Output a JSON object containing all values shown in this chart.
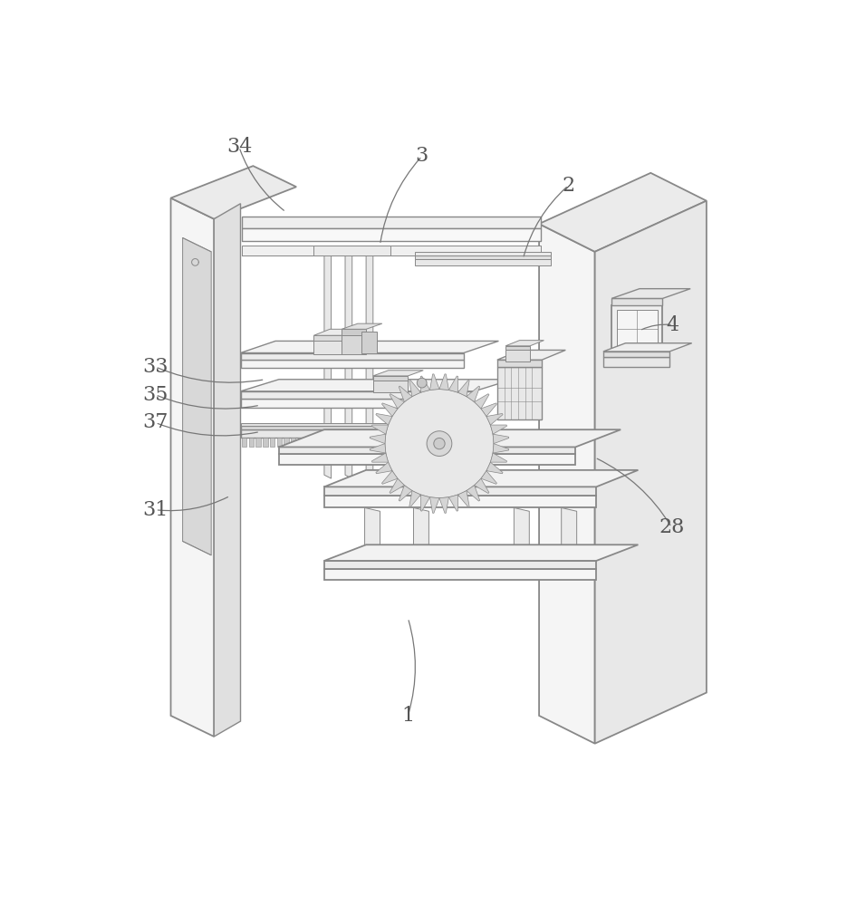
{
  "bg_color": "#ffffff",
  "line_color": "#aaaaaa",
  "line_color_med": "#888888",
  "line_color_dark": "#555555",
  "label_color": "#555555",
  "label_fontsize": 16,
  "leader_color": "#777777",
  "lw_main": 1.3,
  "lw_thin": 0.7,
  "lw_med": 1.0,
  "labels": [
    [
      "1",
      430,
      870,
      430,
      730
    ],
    [
      "2",
      660,
      110,
      595,
      215
    ],
    [
      "3",
      450,
      68,
      390,
      195
    ],
    [
      "4",
      810,
      310,
      762,
      318
    ],
    [
      "28",
      808,
      600,
      698,
      500
    ],
    [
      "31",
      68,
      575,
      175,
      555
    ],
    [
      "33",
      68,
      370,
      225,
      388
    ],
    [
      "34",
      188,
      55,
      255,
      148
    ],
    [
      "35",
      68,
      410,
      218,
      425
    ],
    [
      "37",
      68,
      450,
      218,
      463
    ]
  ]
}
